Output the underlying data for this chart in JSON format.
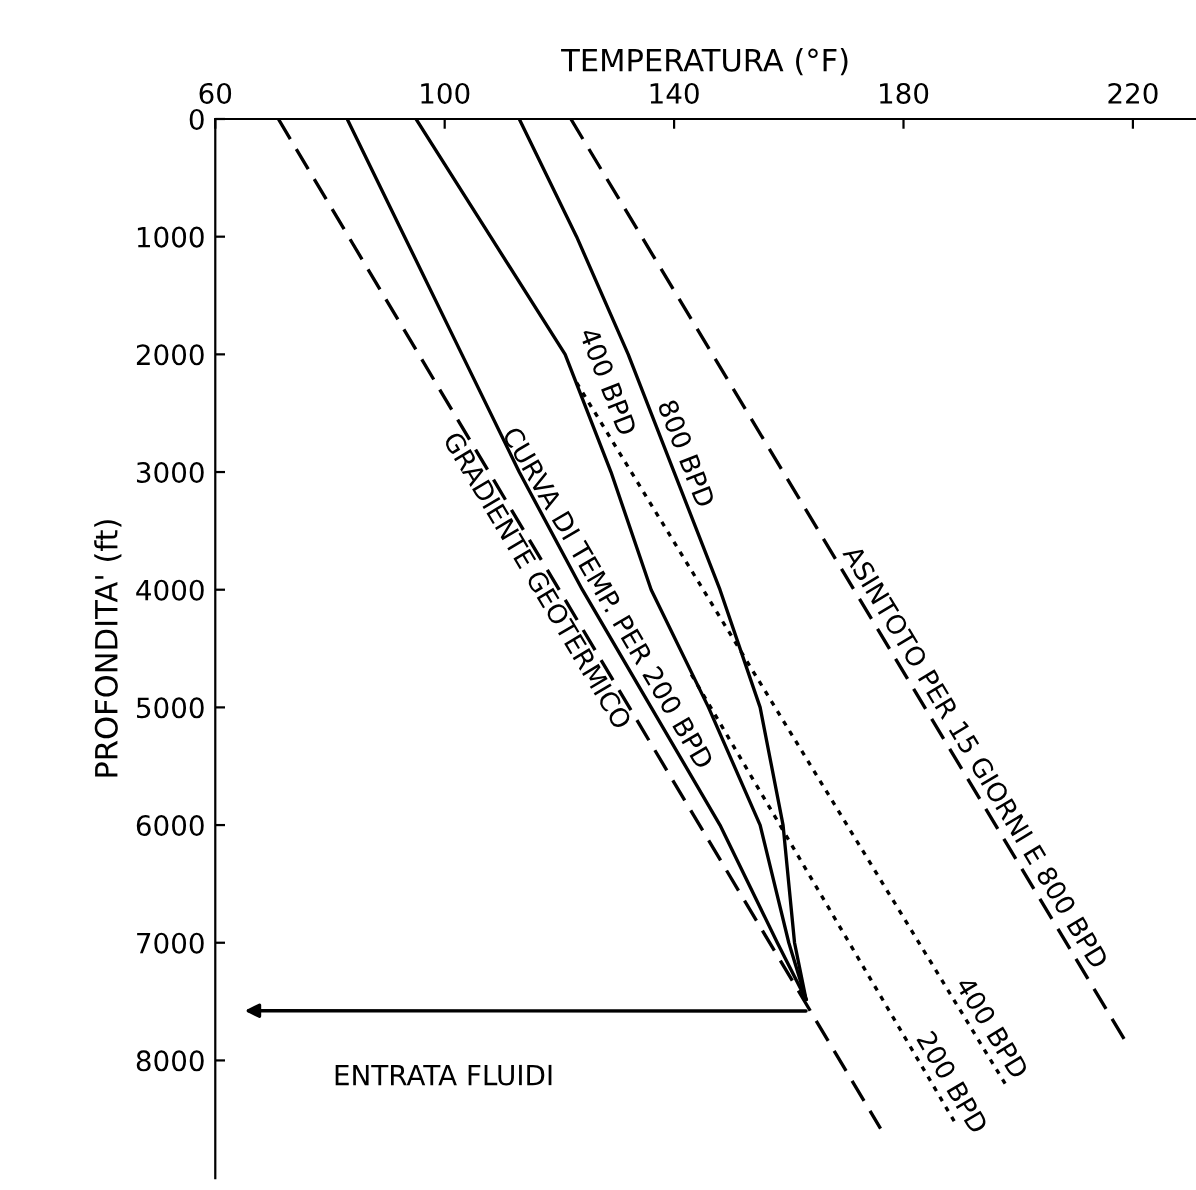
{
  "chart_data": {
    "type": "line",
    "xlabel": "TEMPERATURA (°F)",
    "ylabel": "PROFONDITA' (ft)",
    "xlim": [
      60,
      231
    ],
    "xticks": [
      60,
      100,
      140,
      180,
      220
    ],
    "ylim": [
      9000,
      0
    ],
    "yticks": [
      0,
      1000,
      2000,
      3000,
      4000,
      5000,
      6000,
      7000,
      8000
    ],
    "grid": false,
    "marker": "none",
    "series": [
      {
        "name": "GRADIENTE GEOTERMICO",
        "color": "#000000",
        "line_style": "dashed",
        "x": [
          71,
          176
        ],
        "values": [
          0,
          8580
        ]
      },
      {
        "name": "CURVA DI TEMP. PER 200 BPD",
        "color": "#000000",
        "line_style": "solid",
        "x": [
          83,
          93,
          103,
          113,
          124,
          136,
          148,
          158,
          163
        ],
        "values": [
          0,
          1000,
          2000,
          3000,
          4000,
          5000,
          6000,
          7000,
          7480
        ]
      },
      {
        "name": "400 BPD",
        "color": "#000000",
        "line_style": "solid",
        "x": [
          95,
          108,
          121,
          129,
          136,
          146,
          155,
          160,
          163
        ],
        "values": [
          0,
          1000,
          2000,
          3000,
          4000,
          5000,
          6000,
          7000,
          7480
        ]
      },
      {
        "name": "800 BPD",
        "color": "#000000",
        "line_style": "solid",
        "x": [
          113,
          123,
          132,
          140,
          148,
          155,
          159,
          161,
          163
        ],
        "values": [
          0,
          1000,
          2000,
          3000,
          4000,
          5000,
          6000,
          7000,
          7480
        ]
      },
      {
        "name": "ASINTOTO PER 15 GIORNI E 800 BPD",
        "color": "#000000",
        "line_style": "dashed",
        "x": [
          122,
          219
        ],
        "values": [
          0,
          7860
        ]
      },
      {
        "name": "400 BPD",
        "color": "#000000",
        "line_style": "dotted",
        "x": [
          123,
          198
        ],
        "values": [
          2240,
          8220
        ]
      },
      {
        "name": "200 BPD",
        "color": "#000000",
        "line_style": "dotted",
        "x": [
          143,
          189
        ],
        "values": [
          4720,
          8530
        ]
      }
    ],
    "annotations": [
      "ENTRATA FLUIDI"
    ]
  }
}
